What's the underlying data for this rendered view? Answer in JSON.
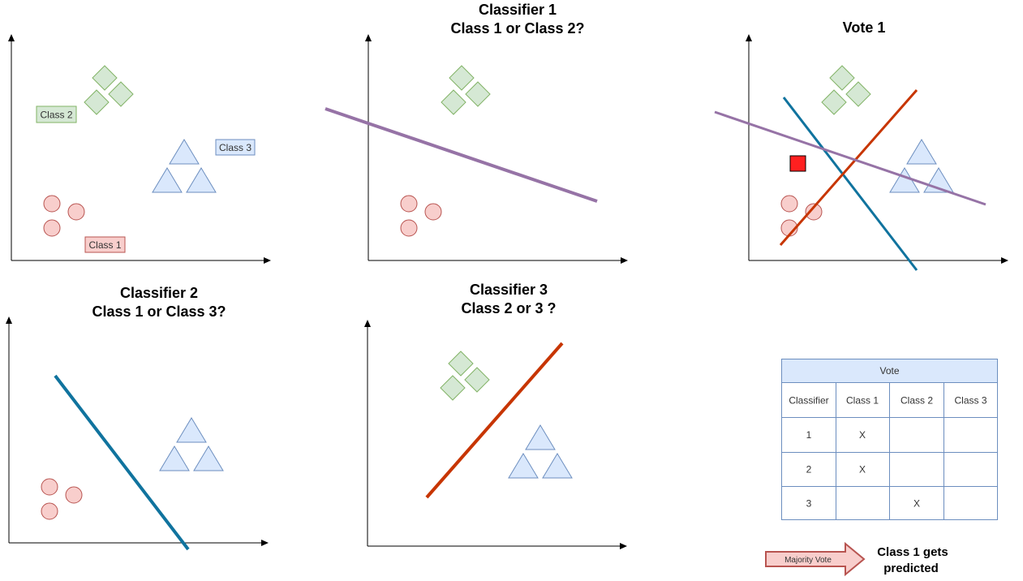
{
  "colors": {
    "circle_fill": "#f8cecc",
    "circle_stroke": "#b85450",
    "diamond_fill": "#d5e8d4",
    "diamond_stroke": "#82b366",
    "triangle_fill": "#dae8fc",
    "triangle_stroke": "#6c8ebf",
    "line_classifier1": "#9673a6",
    "line_classifier2": "#10739e",
    "line_classifier3": "#c73500",
    "test_point": "#ff0000",
    "table_header_fill": "#dae8fc",
    "table_border": "#6c8ebf"
  },
  "panel1": {
    "labels": {
      "class1": "Class 1",
      "class2": "Class 2",
      "class3": "Class 3"
    }
  },
  "panel2": {
    "title_line1": "Classifier 1",
    "title_line2": "Class 1 or Class 2?"
  },
  "panel3": {
    "title": "Vote 1"
  },
  "panel4": {
    "title_line1": "Classifier 2",
    "title_line2": "Class 1 or Class 3?"
  },
  "panel5": {
    "title_line1": "Classifier 3",
    "title_line2": "Class 2 or 3 ?"
  },
  "vote_table": {
    "title": "Vote",
    "headers": [
      "Classifier",
      "Class 1",
      "Class 2",
      "Class 3"
    ],
    "rows": [
      [
        "1",
        "X",
        "",
        ""
      ],
      [
        "2",
        "X",
        "",
        ""
      ],
      [
        "3",
        "",
        "X",
        ""
      ]
    ]
  },
  "majority_arrow": {
    "label": "Majority Vote"
  },
  "result": {
    "line1": "Class 1 gets",
    "line2": "predicted"
  }
}
